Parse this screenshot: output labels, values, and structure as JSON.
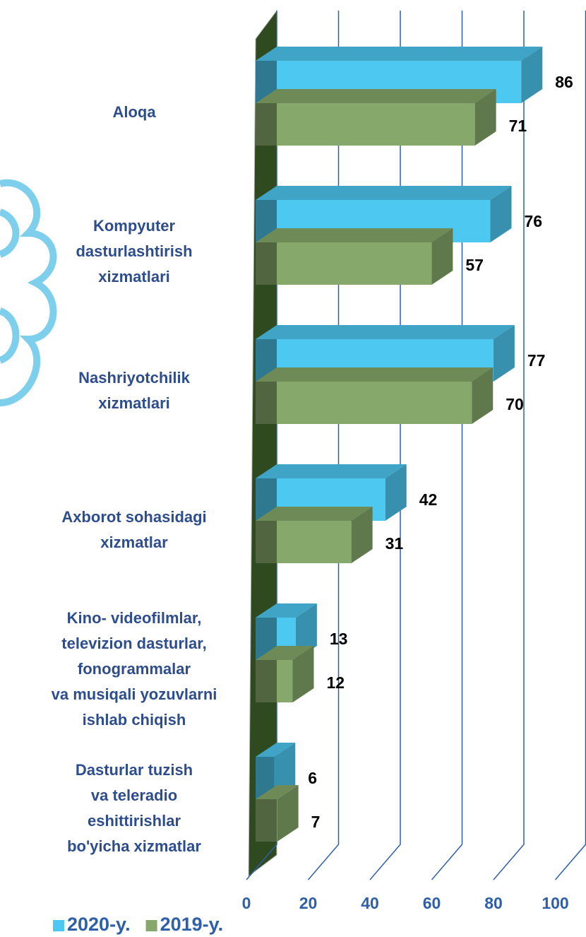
{
  "chart_data": {
    "type": "bar3d_horizontal",
    "categories": [
      "Aloqa",
      "Kompyuter\ndasturlashtirish\nxizmatlari",
      "Nashriyotchilik\nxizmatlari",
      "Axborot sohasidagi\nxizmatlar",
      "Kino- videofilmlar,\ntelevizion dasturlar,\nfonogrammalar\nva musiqali yozuvlarni\nishlab chiqish",
      "Dasturlar tuzish\nva teleradio\neshittirishlar\nbo'yicha xizmatlar"
    ],
    "series": [
      {
        "name": "2020-y.",
        "color": "#4dc8f0",
        "values": [
          86,
          76,
          77,
          42,
          13,
          6
        ]
      },
      {
        "name": "2019-y.",
        "color": "#86a86a",
        "values": [
          71,
          57,
          70,
          31,
          12,
          7
        ]
      }
    ],
    "xlim": [
      0,
      100
    ],
    "xticks": [
      0,
      20,
      40,
      60,
      80,
      100
    ],
    "grid": true
  }
}
